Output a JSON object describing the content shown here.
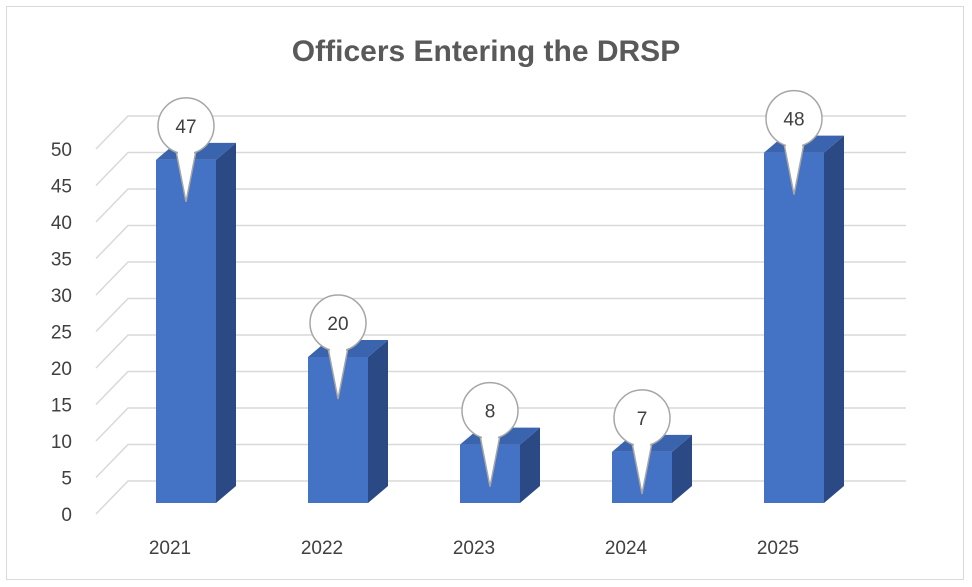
{
  "chart_data": {
    "type": "bar",
    "title": "Officers Entering the DRSP",
    "categories": [
      "2021",
      "2022",
      "2023",
      "2024",
      "2025"
    ],
    "values": [
      47,
      20,
      8,
      7,
      48
    ],
    "data_labels": [
      "47",
      "20",
      "8",
      "7",
      "48"
    ],
    "yticks": [
      "0",
      "5",
      "10",
      "15",
      "20",
      "25",
      "30",
      "35",
      "40",
      "45",
      "50"
    ],
    "ylim": [
      0,
      50
    ],
    "xlabel": "",
    "ylabel": "",
    "grid": true,
    "style": "3d-column",
    "colors": {
      "front": "#4472c4",
      "side": "#2b4a85",
      "top": "#3a64ad",
      "grid": "#d9d9d9"
    }
  }
}
